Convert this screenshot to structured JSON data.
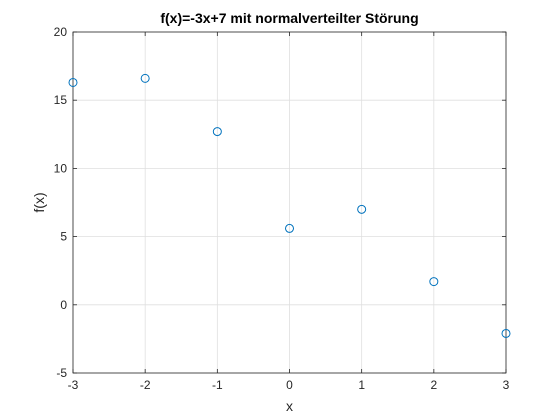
{
  "chart_data": {
    "type": "scatter",
    "title": "f(x)=-3x+7 mit normalverteilter Störung",
    "xlabel": "x",
    "ylabel": "f(x)",
    "xlim": [
      -3,
      3
    ],
    "ylim": [
      -5,
      20
    ],
    "xticks": [
      "-3",
      "-2",
      "-1",
      "0",
      "1",
      "2",
      "3"
    ],
    "yticks": [
      "-5",
      "0",
      "5",
      "10",
      "15",
      "20"
    ],
    "grid": true,
    "marker": "open-circle",
    "colors": {
      "marker": "#0072BD",
      "grid": "#dfdfdf",
      "axes": "#262626",
      "background": "#ffffff"
    },
    "series": [
      {
        "x": [
          -3,
          -2,
          -1,
          0,
          1,
          2,
          3
        ],
        "y": [
          16.3,
          16.6,
          12.7,
          5.6,
          7.0,
          1.7,
          -2.1
        ]
      }
    ]
  }
}
